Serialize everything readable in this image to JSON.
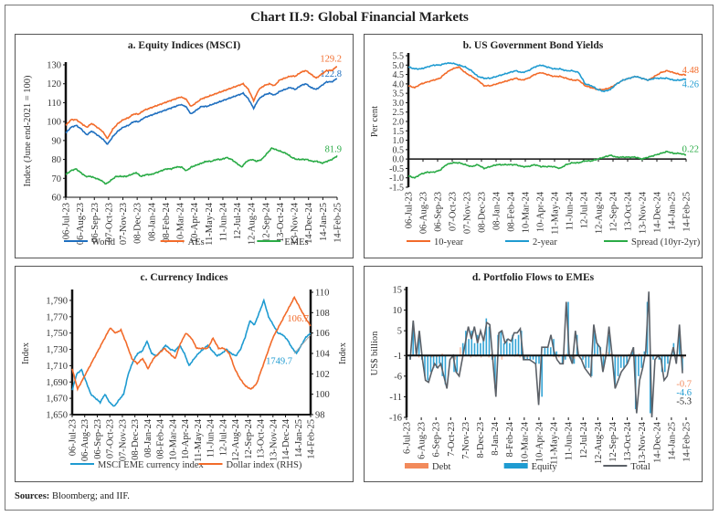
{
  "title": "Chart II.9: Global Financial Markets",
  "sources_label": "Sources:",
  "sources_text": " Bloomberg; and IIF.",
  "colors": {
    "blue": "#1f6fbf",
    "orange": "#f26b2a",
    "green": "#2aab46",
    "sky": "#1f9bd1",
    "gray": "#5b6067",
    "salmon": "#f28a5b",
    "axis": "#111111"
  },
  "chart_data": [
    {
      "id": "a",
      "type": "line",
      "title": "a. Equity Indices (MSCI)",
      "ylabel": "Index (June end-2021 = 100)",
      "xlabel": "",
      "ylim": [
        60,
        130
      ],
      "yticks": [
        60,
        70,
        80,
        90,
        100,
        110,
        120,
        130
      ],
      "x_tick_labels": [
        "06-Jul-23",
        "06-Aug-23",
        "06-Sep-23",
        "07-Oct-23",
        "07-Nov-23",
        "08-Dec-23",
        "08-Jan-24",
        "08-Feb-24",
        "10-Mar-24",
        "10-Apr-24",
        "11-May-24",
        "11-Jun-24",
        "12-Jul-24",
        "12-Aug-24",
        "12-Sep-24",
        "13-Oct-24",
        "13-Nov-24",
        "14-Dec-24",
        "14-Jan-25",
        "14-Feb-25"
      ],
      "legend": "bottom",
      "series": [
        {
          "name": "World",
          "color": "#1f6fbf",
          "end_label": "122.8",
          "values": [
            94,
            97,
            98,
            96,
            93,
            95,
            93,
            91,
            88,
            92,
            95,
            97,
            98,
            100,
            100,
            102,
            103,
            104,
            105,
            106,
            107,
            108,
            109,
            108,
            104,
            106,
            108,
            108,
            109,
            110,
            111,
            112,
            113,
            114,
            115,
            112,
            107,
            112,
            114,
            115,
            114,
            116,
            117,
            118,
            117,
            119,
            120,
            118,
            117,
            119,
            121,
            121,
            122.8
          ]
        },
        {
          "name": "AEs",
          "color": "#f26b2a",
          "end_label": "129.2",
          "values": [
            98,
            101,
            101,
            99,
            97,
            99,
            97,
            95,
            91,
            96,
            99,
            101,
            102,
            104,
            104,
            106,
            107,
            108,
            109,
            110,
            111,
            112,
            113,
            112,
            108,
            110,
            112,
            113,
            114,
            115,
            116,
            117,
            118,
            119,
            120,
            117,
            111,
            117,
            119,
            120,
            119,
            122,
            123,
            124,
            124,
            126,
            127,
            125,
            123,
            125,
            127,
            127,
            129.2
          ]
        },
        {
          "name": "EMEs",
          "color": "#2aab46",
          "end_label": "81.9",
          "values": [
            72,
            74,
            75,
            73,
            71,
            71,
            70,
            69,
            67,
            69,
            71,
            71,
            71,
            72,
            73,
            71,
            72,
            72,
            73,
            74,
            75,
            75,
            76,
            76,
            74,
            76,
            77,
            78,
            79,
            79,
            80,
            80,
            81,
            80,
            78,
            76,
            79,
            80,
            79,
            80,
            83,
            86,
            85,
            84,
            83,
            81,
            80,
            80,
            80,
            79,
            79,
            78,
            79,
            80,
            81.9
          ]
        }
      ]
    },
    {
      "id": "b",
      "type": "line",
      "title": "b. US Government Bond Yields",
      "ylabel": "Per cent",
      "xlabel": "",
      "ylim": [
        -1.5,
        5.5
      ],
      "yticks": [
        -1.5,
        -1.0,
        -0.5,
        0.0,
        0.5,
        1.0,
        1.5,
        2.0,
        2.5,
        3.0,
        3.5,
        4.0,
        4.5,
        5.0,
        5.5
      ],
      "x_tick_labels": [
        "06-Jul-23",
        "06-Aug-23",
        "06-Sep-23",
        "07-Oct-23",
        "07-Nov-23",
        "08-Dec-23",
        "08-Jan-24",
        "08-Feb-24",
        "10-Mar-24",
        "10-Apr-24",
        "11-May-24",
        "11-Jun-24",
        "12-Jul-24",
        "12-Aug-24",
        "12-Sep-24",
        "13-Oct-24",
        "13-Nov-24",
        "14-Dec-24",
        "14-Jan-25",
        "14-Feb-25"
      ],
      "legend": "bottom",
      "series": [
        {
          "name": "10-year",
          "color": "#f26b2a",
          "end_label": "4.48",
          "values": [
            3.9,
            3.8,
            4.0,
            4.1,
            4.2,
            4.3,
            4.6,
            4.8,
            4.9,
            4.6,
            4.4,
            4.2,
            3.9,
            3.9,
            4.0,
            4.1,
            4.2,
            4.3,
            4.2,
            4.3,
            4.5,
            4.6,
            4.5,
            4.4,
            4.4,
            4.3,
            4.2,
            4.2,
            3.9,
            3.8,
            3.7,
            3.7,
            3.8,
            4.0,
            4.2,
            4.3,
            4.4,
            4.3,
            4.2,
            4.4,
            4.6,
            4.7,
            4.6,
            4.5,
            4.48
          ]
        },
        {
          "name": "2-year",
          "color": "#1f9bd1",
          "end_label": "4.26",
          "values": [
            4.9,
            4.8,
            4.8,
            4.9,
            5.0,
            5.0,
            5.1,
            5.1,
            5.0,
            4.9,
            4.7,
            4.4,
            4.3,
            4.3,
            4.4,
            4.5,
            4.6,
            4.7,
            4.6,
            4.7,
            4.9,
            5.0,
            4.9,
            4.8,
            4.8,
            4.7,
            4.7,
            4.6,
            4.0,
            3.9,
            3.7,
            3.6,
            3.7,
            4.0,
            4.2,
            4.3,
            4.4,
            4.3,
            4.2,
            4.3,
            4.3,
            4.3,
            4.2,
            4.2,
            4.26
          ]
        },
        {
          "name": "Spread (10yr-2yr)",
          "color": "#2aab46",
          "end_label": "0.22",
          "values": [
            -0.9,
            -1.0,
            -0.8,
            -0.7,
            -0.7,
            -0.6,
            -0.3,
            -0.2,
            -0.2,
            -0.3,
            -0.4,
            -0.3,
            -0.5,
            -0.4,
            -0.3,
            -0.3,
            -0.3,
            -0.3,
            -0.4,
            -0.4,
            -0.3,
            -0.4,
            -0.4,
            -0.4,
            -0.5,
            -0.3,
            -0.2,
            -0.2,
            -0.1,
            -0.1,
            0.0,
            0.1,
            0.2,
            0.1,
            0.1,
            0.1,
            0.1,
            0.0,
            0.1,
            0.2,
            0.3,
            0.4,
            0.3,
            0.3,
            0.22
          ]
        }
      ]
    },
    {
      "id": "c",
      "type": "line",
      "title": "c. Currency Indices",
      "ylabel": "Index",
      "ylabel_right": "Index",
      "xlabel": "",
      "ylim": [
        1650,
        1800
      ],
      "ylim_right": [
        98,
        110
      ],
      "yticks": [
        1650,
        1670,
        1690,
        1710,
        1730,
        1750,
        1770,
        1790
      ],
      "ytick_labels": [
        "1,650",
        "1,670",
        "1,690",
        "1,710",
        "1,730",
        "1,750",
        "1,770",
        "1,790"
      ],
      "yticks_right": [
        98,
        100,
        102,
        104,
        106,
        108,
        110
      ],
      "x_tick_labels": [
        "06-Jul-23",
        "06-Aug-23",
        "06-Sep-23",
        "07-Oct-23",
        "07-Nov-23",
        "08-Dec-23",
        "08-Jan-24",
        "08-Feb-24",
        "10-Mar-24",
        "10-Apr-24",
        "11-May-24",
        "11-Jun-24",
        "12-Jul-24",
        "12-Aug-24",
        "12-Sep-24",
        "13-Oct-24",
        "13-Nov-24",
        "14-Dec-24",
        "14-Jan-25",
        "14-Feb-25"
      ],
      "legend": "bottom",
      "series": [
        {
          "name": "MSCI EME currency index",
          "axis": "left",
          "color": "#1f9bd1",
          "end_label": "1749.7",
          "values": [
            1680,
            1700,
            1705,
            1690,
            1675,
            1670,
            1665,
            1675,
            1665,
            1660,
            1668,
            1675,
            1700,
            1715,
            1725,
            1728,
            1740,
            1725,
            1722,
            1728,
            1735,
            1730,
            1728,
            1735,
            1725,
            1710,
            1718,
            1725,
            1730,
            1735,
            1728,
            1722,
            1725,
            1730,
            1725,
            1722,
            1730,
            1745,
            1765,
            1760,
            1775,
            1790,
            1770,
            1760,
            1750,
            1748,
            1742,
            1732,
            1725,
            1735,
            1745,
            1749.7
          ]
        },
        {
          "name": "Dollar index (RHS)",
          "axis": "right",
          "color": "#f26b2a",
          "end_label": "106.7",
          "values": [
            102.5,
            100.5,
            101.5,
            102.5,
            103.5,
            104.5,
            105.5,
            106.5,
            106,
            106.3,
            105,
            103.5,
            103,
            103.5,
            102.5,
            103.5,
            104,
            104.5,
            104,
            103.5,
            105,
            106,
            105.5,
            104.5,
            104.5,
            104.5,
            105.5,
            104.5,
            104.5,
            104,
            102.5,
            101.5,
            100.8,
            100.5,
            101,
            102.5,
            104,
            105.5,
            106.5,
            107.5,
            108.5,
            109.5,
            108.5,
            107.5,
            106.7
          ]
        }
      ]
    },
    {
      "id": "d",
      "type": "bar",
      "title": "d. Portfolio Flows to EMEs",
      "ylabel": "US$ billion",
      "xlabel": "",
      "ylim": [
        -16,
        15
      ],
      "yticks": [
        -16,
        -11,
        -6,
        -1,
        5,
        10,
        15
      ],
      "x_tick_labels": [
        "6-Jul-23",
        "6-Aug-23",
        "6-Sep-23",
        "7-Oct-23",
        "7-Nov-23",
        "8-Dec-23",
        "8-Jan-24",
        "8-Feb-24",
        "10-Mar-24",
        "10-Apr-24",
        "11-May-24",
        "11-Jun-24",
        "12-Jul-24",
        "12-Aug-24",
        "12-Sep-24",
        "13-Oct-24",
        "13-Nov-24",
        "14-Dec-24",
        "14-Jan-25",
        "14-Feb-25"
      ],
      "legend": "bottom",
      "series": [
        {
          "name": "Debt",
          "kind": "bar",
          "color": "#f28a5b",
          "end_label": "-0.7",
          "values": [
            0,
            0.3,
            0,
            -0.5,
            0,
            0,
            -0.3,
            0,
            -0.5,
            0,
            -0.4,
            0,
            0.5,
            0,
            0,
            0,
            -0.3,
            -1,
            0,
            2,
            0,
            0,
            0,
            -0.5,
            0,
            -0.3,
            0,
            -0.5,
            0,
            0,
            -0.5,
            0.5,
            -0.5,
            0,
            0,
            -1,
            0,
            0,
            0.3,
            0,
            -0.3,
            0.5,
            -0.5,
            0,
            -0.5,
            -0.5,
            0,
            0,
            0,
            0,
            0,
            0,
            0,
            0,
            0,
            -0.4,
            0,
            -0.5,
            0,
            -0.3,
            0.5,
            0.3,
            -0.5,
            -0.8,
            0,
            -0.5,
            0,
            -0.6,
            0,
            -0.5,
            -0.3,
            0.5,
            0.3,
            0,
            0.5,
            -0.5,
            0.8,
            0.5,
            0.3,
            -0.5,
            -0.5,
            0,
            -0.5,
            0,
            0.4,
            0,
            0.3,
            0,
            0.5,
            0.3,
            0,
            0,
            0,
            0,
            0,
            0,
            0,
            0,
            0,
            0,
            0,
            0,
            0,
            0,
            -0.5,
            -0.7
          ]
        },
        {
          "name": "Equity",
          "kind": "bar",
          "color": "#1f9bd1",
          "end_label": "-4.6",
          "values": [
            -2,
            7,
            -1,
            4,
            -2,
            -6,
            -7,
            -5,
            -4,
            -4,
            -3,
            -6,
            -8,
            -1,
            -1,
            -5,
            -5,
            -1,
            2,
            5,
            3,
            5,
            2,
            4,
            2,
            3,
            8,
            6,
            -2,
            -9,
            4,
            5,
            2,
            3,
            2,
            4,
            3,
            4,
            5,
            -2,
            -2,
            -2,
            -2,
            -3,
            -3,
            -11,
            1,
            1,
            1,
            3,
            0,
            -1,
            -3,
            -2,
            12,
            -2,
            -3,
            4,
            -1,
            -2,
            -4,
            -4,
            -6,
            5,
            2,
            1,
            -4,
            -1,
            4,
            -1,
            -8,
            -6,
            -4,
            -4,
            -3,
            -1,
            0,
            -14,
            -6,
            -4,
            0,
            12,
            -15,
            -2,
            -1,
            -2,
            -5,
            -5,
            -3,
            -1,
            2,
            -1,
            5,
            -4.6
          ]
        },
        {
          "name": "Total",
          "kind": "line",
          "color": "#5b6067",
          "end_label": "-5.3",
          "values": [
            -2,
            7.5,
            -1,
            5,
            -2,
            -7,
            -7.5,
            -5,
            -3,
            -4,
            -3,
            -6,
            -9,
            -2,
            -1,
            -5,
            -6,
            -2,
            2,
            6,
            3,
            6,
            2,
            5,
            2.5,
            7,
            6.5,
            -2,
            -11,
            4.5,
            5,
            2,
            3,
            2.5,
            4.5,
            4.5,
            5.5,
            -2,
            -2,
            -2,
            -2.5,
            -3,
            -13,
            1,
            1,
            1,
            4,
            0,
            -2,
            -3,
            -3,
            12,
            -1,
            -3,
            5,
            -1,
            -2,
            -4,
            -5,
            -6,
            6.5,
            2,
            1,
            -5,
            -1,
            6,
            -1,
            -9,
            -7,
            -5,
            -4,
            -3,
            -1,
            1,
            -15,
            -7,
            -4,
            0,
            14.5,
            -16,
            -2,
            -1,
            -2,
            -7,
            -6,
            -2,
            1,
            -3,
            6.5,
            -5.3
          ]
        }
      ]
    }
  ]
}
